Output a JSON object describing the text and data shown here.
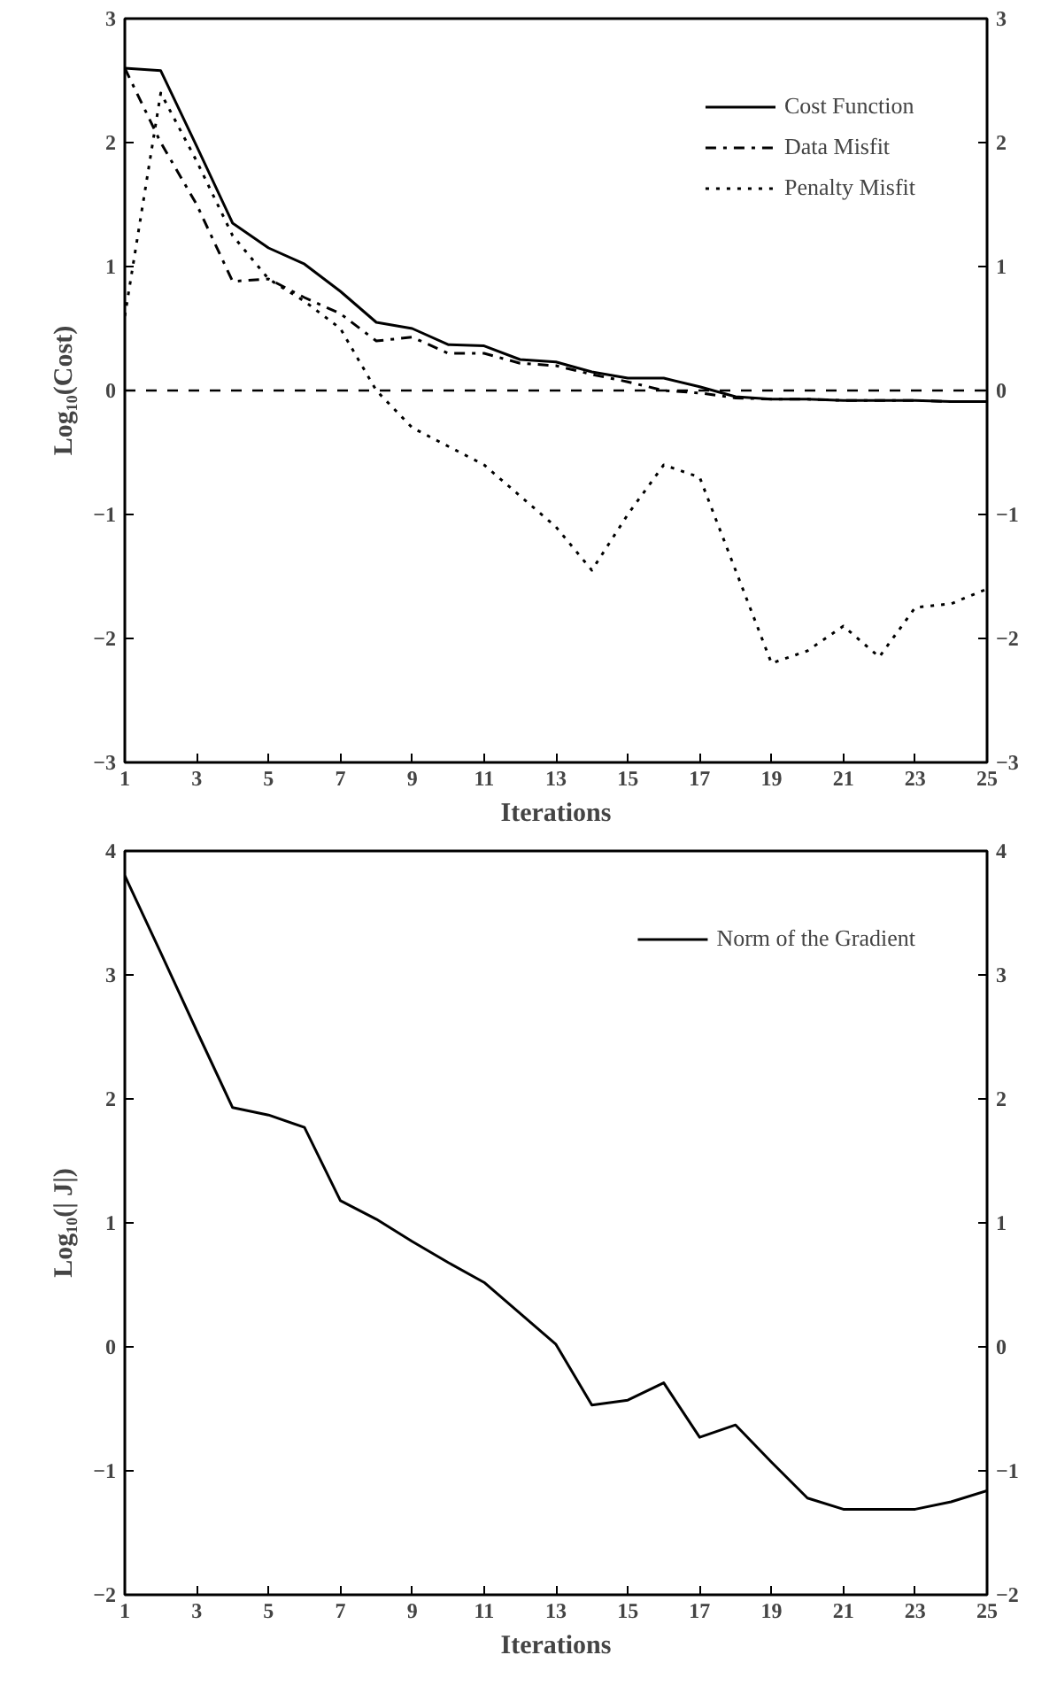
{
  "chart_data": [
    {
      "type": "line",
      "xlabel": "Iterations",
      "ylabel": "Log₁₀(Cost)",
      "x": [
        1,
        2,
        3,
        4,
        5,
        6,
        7,
        8,
        9,
        10,
        11,
        12,
        13,
        14,
        15,
        16,
        17,
        18,
        19,
        20,
        21,
        22,
        23,
        24,
        25
      ],
      "series": [
        {
          "name": "Cost Function",
          "color": "#000000",
          "line_style": "solid",
          "values": [
            2.6,
            2.58,
            1.97,
            1.35,
            1.15,
            1.02,
            0.8,
            0.55,
            0.5,
            0.37,
            0.36,
            0.25,
            0.23,
            0.15,
            0.1,
            0.1,
            0.03,
            -0.05,
            -0.07,
            -0.07,
            -0.08,
            -0.08,
            -0.08,
            -0.09,
            -0.09
          ]
        },
        {
          "name": "Data Misfit",
          "color": "#000000",
          "line_style": "dashdot",
          "values": [
            2.6,
            2.0,
            1.5,
            0.88,
            0.9,
            0.75,
            0.62,
            0.4,
            0.43,
            0.3,
            0.3,
            0.22,
            0.2,
            0.13,
            0.07,
            0.0,
            -0.02,
            -0.06,
            -0.07,
            -0.07,
            -0.08,
            -0.08,
            -0.08,
            -0.09,
            -0.09
          ]
        },
        {
          "name": "Penalty Misfit",
          "color": "#000000",
          "line_style": "dotted",
          "values": [
            0.6,
            2.4,
            1.85,
            1.25,
            0.9,
            0.72,
            0.5,
            0.0,
            -0.3,
            -0.45,
            -0.6,
            -0.85,
            -1.1,
            -1.45,
            -1.0,
            -0.6,
            -0.7,
            -1.45,
            -2.2,
            -2.1,
            -1.9,
            -2.15,
            -1.75,
            -1.72,
            -1.6
          ]
        }
      ],
      "xlim": [
        1,
        25
      ],
      "xticks": [
        1,
        3,
        5,
        7,
        9,
        11,
        13,
        15,
        17,
        19,
        21,
        23,
        25
      ],
      "ylim": [
        -3,
        3
      ],
      "yticks": [
        -3,
        -2,
        -1,
        0,
        1,
        2,
        3
      ],
      "y2lim": [
        -3,
        3
      ],
      "y2ticks": [
        -3,
        -2,
        -1,
        0,
        1,
        2,
        3
      ],
      "ref_lines": [
        {
          "axis": "y",
          "value": 0,
          "line_style": "dashed",
          "color": "#000000"
        }
      ],
      "legend": "top right",
      "grid": false
    },
    {
      "type": "line",
      "xlabel": "Iterations",
      "ylabel": "Log₁₀(| J|)",
      "x": [
        1,
        2,
        3,
        4,
        5,
        6,
        7,
        8,
        9,
        10,
        11,
        12,
        13,
        14,
        15,
        16,
        17,
        18,
        19,
        20,
        21,
        22,
        23,
        24,
        25
      ],
      "series": [
        {
          "name": "Norm of the Gradient",
          "color": "#000000",
          "line_style": "solid",
          "values": [
            3.8,
            3.18,
            2.55,
            1.93,
            1.87,
            1.77,
            1.18,
            1.03,
            0.85,
            0.68,
            0.52,
            0.27,
            0.02,
            -0.47,
            -0.43,
            -0.29,
            -0.73,
            -0.63,
            -0.93,
            -1.22,
            -1.31,
            -1.31,
            -1.31,
            -1.25,
            -1.16
          ]
        }
      ],
      "xlim": [
        1,
        25
      ],
      "xticks": [
        1,
        3,
        5,
        7,
        9,
        11,
        13,
        15,
        17,
        19,
        21,
        23,
        25
      ],
      "ylim": [
        -2,
        4
      ],
      "yticks": [
        -2,
        -1,
        0,
        1,
        2,
        3,
        4
      ],
      "y2lim": [
        -2,
        4
      ],
      "y2ticks": [
        -2,
        -1,
        0,
        1,
        2,
        3,
        4
      ],
      "legend": "top right",
      "grid": false
    }
  ]
}
